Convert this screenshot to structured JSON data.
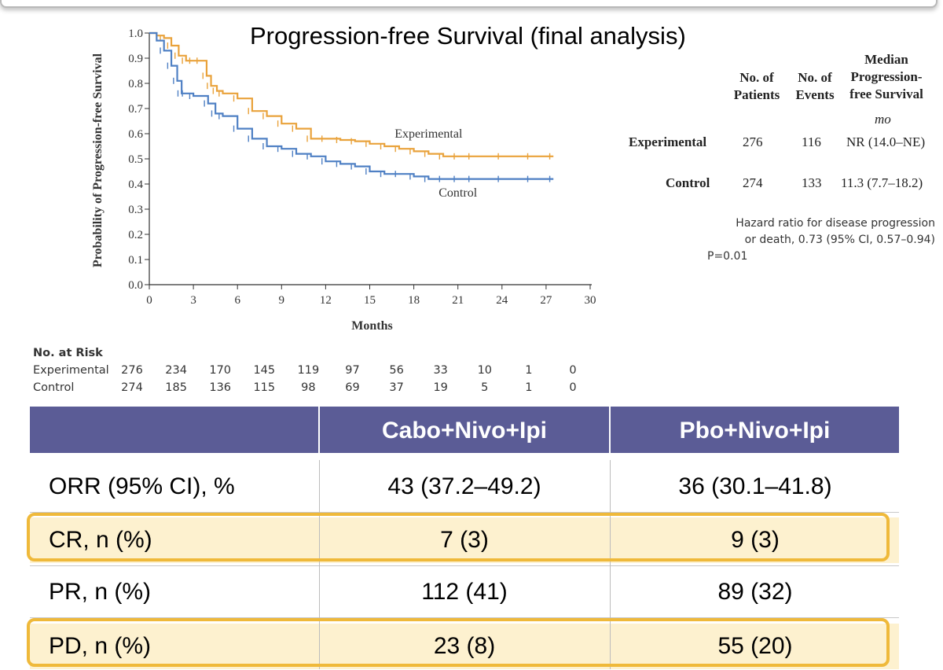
{
  "chart_data": {
    "type": "line",
    "title": "Progression-free Survival (final analysis)",
    "xlabel": "Months",
    "ylabel": "Probability of Progression-free Survival",
    "xlim": [
      0,
      30
    ],
    "ylim": [
      0,
      1
    ],
    "x_ticks": [
      "0",
      "3",
      "6",
      "9",
      "12",
      "15",
      "18",
      "21",
      "24",
      "27",
      "30"
    ],
    "y_ticks": [
      "0.0",
      "0.1",
      "0.2",
      "0.3",
      "0.4",
      "0.5",
      "0.6",
      "0.7",
      "0.8",
      "0.9",
      "1.0"
    ],
    "series": [
      {
        "name": "Experimental",
        "color": "#e9a23b",
        "x": [
          0,
          0.5,
          1,
          1.5,
          2,
          2.5,
          3,
          3.5,
          3.9,
          4.2,
          4.6,
          5,
          6,
          7,
          8,
          9,
          10,
          11,
          12,
          13,
          14,
          15,
          16,
          17,
          18,
          19,
          20,
          21,
          22,
          24,
          26,
          27.5
        ],
        "y": [
          1.0,
          0.99,
          0.98,
          0.95,
          0.91,
          0.89,
          0.89,
          0.89,
          0.83,
          0.79,
          0.77,
          0.76,
          0.74,
          0.69,
          0.67,
          0.64,
          0.62,
          0.58,
          0.58,
          0.575,
          0.57,
          0.56,
          0.55,
          0.54,
          0.53,
          0.52,
          0.51,
          0.51,
          0.51,
          0.51,
          0.51,
          0.51
        ]
      },
      {
        "name": "Control",
        "color": "#4f80c4",
        "x": [
          0,
          0.5,
          1,
          1.5,
          1.9,
          2.2,
          2.5,
          3,
          4,
          4.5,
          5,
          6,
          7,
          8,
          9,
          10,
          11,
          12,
          13,
          14,
          15,
          16,
          17,
          18,
          19,
          20,
          21,
          22,
          24,
          26,
          27.5
        ],
        "y": [
          1.0,
          0.97,
          0.93,
          0.87,
          0.81,
          0.76,
          0.76,
          0.75,
          0.72,
          0.68,
          0.67,
          0.62,
          0.58,
          0.55,
          0.54,
          0.52,
          0.51,
          0.49,
          0.48,
          0.47,
          0.45,
          0.44,
          0.44,
          0.43,
          0.42,
          0.42,
          0.42,
          0.42,
          0.42,
          0.42,
          0.42
        ]
      }
    ],
    "annotations": [
      "Experimental",
      "Control"
    ]
  },
  "legend_table": {
    "headers": {
      "patients": [
        "No. of",
        "Patients"
      ],
      "events": [
        "No. of",
        "Events"
      ],
      "median": [
        "Median",
        "Progression-",
        "free Survival"
      ],
      "unit": "mo"
    },
    "rows": [
      {
        "group": "Experimental",
        "patients": "276",
        "events": "116",
        "median": "NR (14.0–NE)"
      },
      {
        "group": "Control",
        "patients": "274",
        "events": "133",
        "median": "11.3 (7.7–18.2)"
      }
    ]
  },
  "hazard_note": {
    "line1": "Hazard ratio for disease progression",
    "line2": "or death, 0.73 (95% CI, 0.57–0.94)",
    "line3": "P=0.01"
  },
  "at_risk": {
    "title": "No. at Risk",
    "rows": [
      {
        "label": "Experimental",
        "values": [
          "276",
          "234",
          "170",
          "145",
          "119",
          "97",
          "56",
          "33",
          "10",
          "1",
          "0"
        ]
      },
      {
        "label": "Control",
        "values": [
          "274",
          "185",
          "136",
          "115",
          "98",
          "69",
          "37",
          "19",
          "5",
          "1",
          "0"
        ]
      }
    ]
  },
  "response_table": {
    "headers": [
      "",
      "Cabo+Nivo+Ipi",
      "Pbo+Nivo+Ipi"
    ],
    "rows": [
      {
        "label": "ORR (95% CI), %",
        "cabo": "43 (37.2–49.2)",
        "pbo": "36 (30.1–41.8)",
        "highlight": false
      },
      {
        "label": "CR, n (%)",
        "cabo": "7 (3)",
        "pbo": "9 (3)",
        "highlight": true
      },
      {
        "label": "PR, n (%)",
        "cabo": "112 (41)",
        "pbo": "89 (32)",
        "highlight": false
      },
      {
        "label": "PD, n (%)",
        "cabo": "23 (8)",
        "pbo": "55 (20)",
        "highlight": true
      }
    ],
    "header_color": "#5b5c96",
    "highlight_color": "#efb93a"
  }
}
